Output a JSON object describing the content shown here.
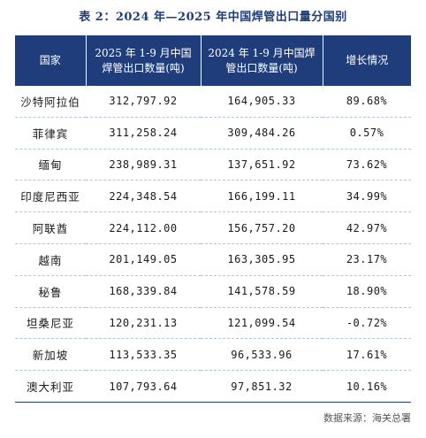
{
  "title": "表 2：2024 年—2025 年中国焊管出口量分国别",
  "headers": {
    "country": "国家",
    "y2025": "2025 年 1-9 月中国焊管出口数量(吨)",
    "y2024": "2024 年 1-9 月中国焊管出口数量(吨)",
    "growth": "增长情况"
  },
  "rows": [
    {
      "country": "沙特阿拉伯",
      "y2025": "312,797.92",
      "y2024": "164,905.33",
      "growth": "89.68%"
    },
    {
      "country": "菲律宾",
      "y2025": "311,258.24",
      "y2024": "309,484.26",
      "growth": "0.57%"
    },
    {
      "country": "缅甸",
      "y2025": "238,989.31",
      "y2024": "137,651.92",
      "growth": "73.62%"
    },
    {
      "country": "印度尼西亚",
      "y2025": "224,348.54",
      "y2024": "166,199.11",
      "growth": "34.99%"
    },
    {
      "country": "阿联酋",
      "y2025": "224,112.00",
      "y2024": "156,757.20",
      "growth": "42.97%"
    },
    {
      "country": "越南",
      "y2025": "201,149.05",
      "y2024": "163,305.95",
      "growth": "23.17%"
    },
    {
      "country": "秘鲁",
      "y2025": "168,339.84",
      "y2024": "141,578.59",
      "growth": "18.90%"
    },
    {
      "country": "坦桑尼亚",
      "y2025": "120,231.13",
      "y2024": "121,099.54",
      "growth": "-0.72%"
    },
    {
      "country": "新加坡",
      "y2025": "113,533.35",
      "y2024": "96,533.96",
      "growth": "17.61%"
    },
    {
      "country": "澳大利亚",
      "y2025": "107,793.64",
      "y2024": "97,851.32",
      "growth": "10.16%"
    }
  ],
  "source": "数据来源：海关总署",
  "colors": {
    "header_bg": "#1f3d7a",
    "title": "#1f3d7a"
  }
}
